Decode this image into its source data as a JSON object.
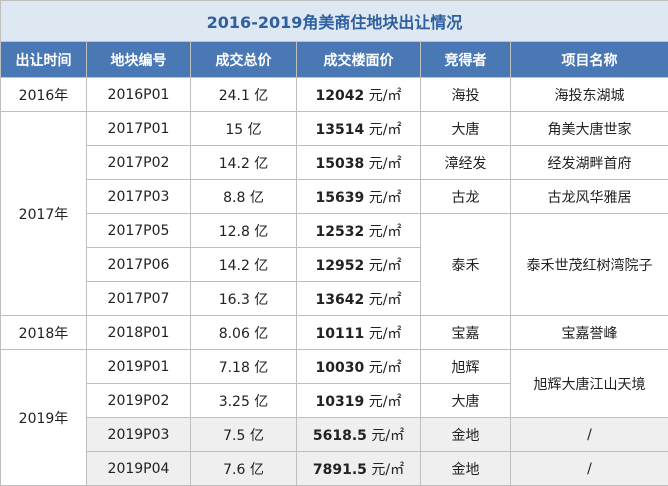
{
  "title": "2016-2019角美商住地块出让情况",
  "table": {
    "header": [
      "出让时间",
      "地块编号",
      "成交总价",
      "成交楼面价",
      "竞得者",
      "项目名称"
    ],
    "rows": [
      {
        "year": "2016年",
        "plot": "2016P01",
        "total": "24.1 亿",
        "floor": "12042",
        "unit": "元/㎡",
        "winner": "海投",
        "project": "海投东湖城"
      },
      {
        "year": "2017年",
        "plot": "2017P01",
        "total": "15 亿",
        "floor": "13514",
        "unit": "元/㎡",
        "winner": "大唐",
        "project": "角美大唐世家"
      },
      {
        "plot": "2017P02",
        "total": "14.2 亿",
        "floor": "15038",
        "unit": "元/㎡",
        "winner": "漳经发",
        "project": "经发湖畔首府"
      },
      {
        "plot": "2017P03",
        "total": "8.8 亿",
        "floor": "15639",
        "unit": "元/㎡",
        "winner": "古龙",
        "project": "古龙风华雅居"
      },
      {
        "plot": "2017P05",
        "total": "12.8 亿",
        "floor": "12532",
        "unit": "元/㎡",
        "winner": "泰禾",
        "project": "泰禾世茂红树湾院子"
      },
      {
        "plot": "2017P06",
        "total": "14.2 亿",
        "floor": "12952",
        "unit": "元/㎡"
      },
      {
        "plot": "2017P07",
        "total": "16.3 亿",
        "floor": "13642",
        "unit": "元/㎡"
      },
      {
        "year": "2018年",
        "plot": "2018P01",
        "total": "8.06 亿",
        "floor": "10111",
        "unit": "元/㎡",
        "winner": "宝嘉",
        "project": "宝嘉誉峰"
      },
      {
        "year": "2019年",
        "plot": "2019P01",
        "total": "7.18 亿",
        "floor": "10030",
        "unit": "元/㎡",
        "winner": "旭辉",
        "project": "旭辉大唐江山天境"
      },
      {
        "plot": "2019P02",
        "total": "3.25 亿",
        "floor": "10319",
        "unit": "元/㎡",
        "winner": "大唐"
      },
      {
        "plot": "2019P03",
        "total": "7.5 亿",
        "floor": "5618.5",
        "unit": "元/㎡",
        "winner": "金地",
        "project": "/"
      },
      {
        "plot": "2019P04",
        "total": "7.6 亿",
        "floor": "7891.5",
        "unit": "元/㎡",
        "winner": "金地",
        "project": "/"
      }
    ]
  }
}
